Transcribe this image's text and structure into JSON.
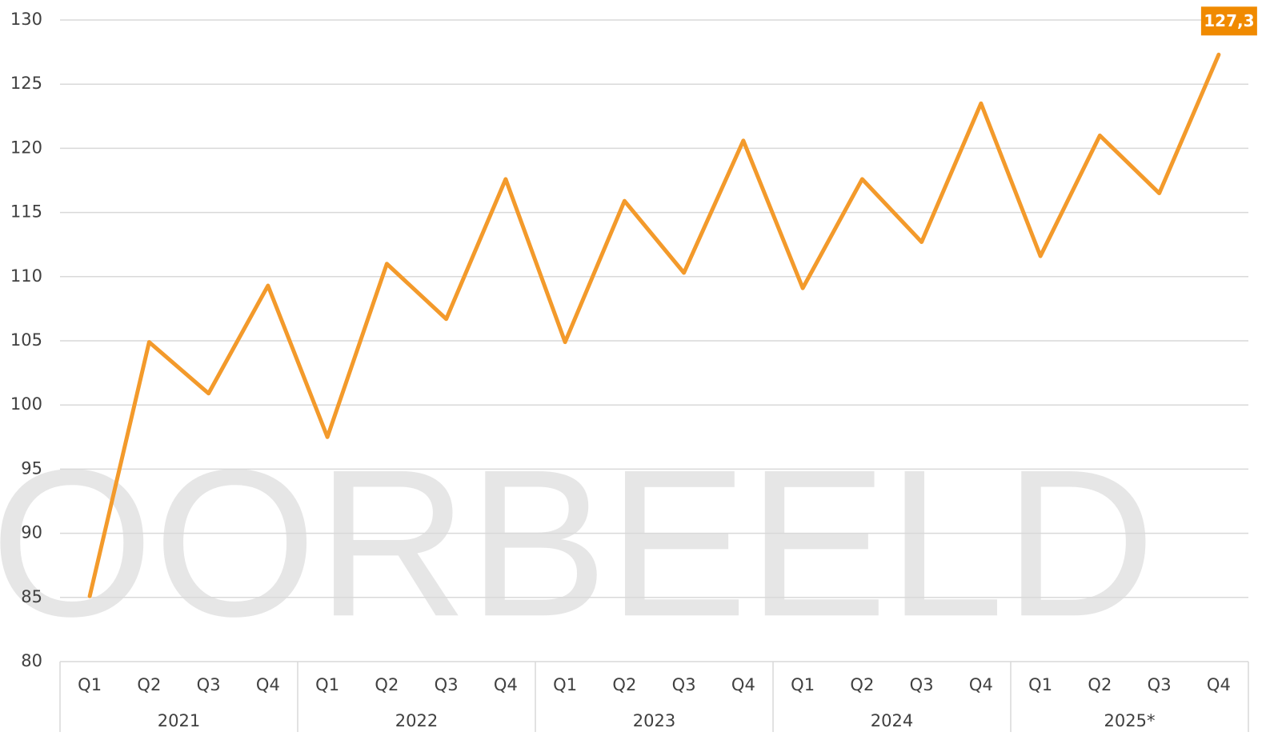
{
  "chart_data": {
    "type": "line",
    "watermark": "OORBEELD",
    "groups": [
      {
        "name": "2021",
        "categories": [
          "Q1",
          "Q2",
          "Q3",
          "Q4"
        ]
      },
      {
        "name": "2022",
        "categories": [
          "Q1",
          "Q2",
          "Q3",
          "Q4"
        ]
      },
      {
        "name": "2023",
        "categories": [
          "Q1",
          "Q2",
          "Q3",
          "Q4"
        ]
      },
      {
        "name": "2024",
        "categories": [
          "Q1",
          "Q2",
          "Q3",
          "Q4"
        ]
      },
      {
        "name": "2025*",
        "categories": [
          "Q1",
          "Q2",
          "Q3",
          "Q4"
        ]
      }
    ],
    "series": [
      {
        "color": "#f39a2b",
        "values": [
          85.1,
          104.9,
          100.9,
          109.3,
          97.5,
          111.0,
          106.7,
          117.6,
          104.9,
          115.9,
          110.3,
          120.6,
          109.1,
          117.6,
          112.7,
          123.5,
          111.6,
          121.0,
          116.5,
          127.3
        ],
        "value_labels": [
          null,
          null,
          null,
          null,
          null,
          null,
          null,
          null,
          null,
          null,
          null,
          null,
          null,
          null,
          null,
          null,
          null,
          null,
          null,
          "127,3"
        ],
        "label_color": "#f08a00"
      }
    ],
    "ylim": [
      80,
      130
    ],
    "yticks": [
      80,
      85,
      90,
      95,
      100,
      105,
      110,
      115,
      120,
      125,
      130
    ],
    "grid": true
  }
}
